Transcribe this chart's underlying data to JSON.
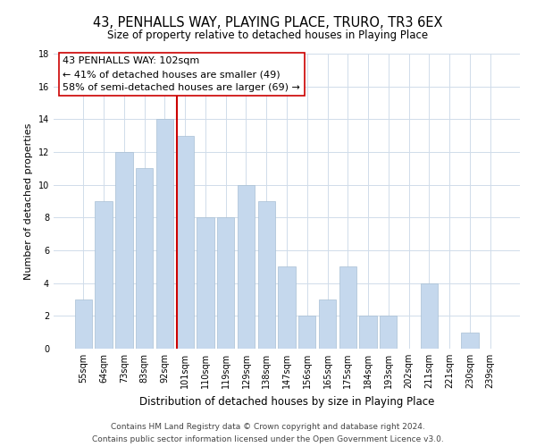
{
  "title": "43, PENHALLS WAY, PLAYING PLACE, TRURO, TR3 6EX",
  "subtitle": "Size of property relative to detached houses in Playing Place",
  "xlabel": "Distribution of detached houses by size in Playing Place",
  "ylabel": "Number of detached properties",
  "bar_labels": [
    "55sqm",
    "64sqm",
    "73sqm",
    "83sqm",
    "92sqm",
    "101sqm",
    "110sqm",
    "119sqm",
    "129sqm",
    "138sqm",
    "147sqm",
    "156sqm",
    "165sqm",
    "175sqm",
    "184sqm",
    "193sqm",
    "202sqm",
    "211sqm",
    "221sqm",
    "230sqm",
    "239sqm"
  ],
  "bar_values": [
    3,
    9,
    12,
    11,
    14,
    13,
    8,
    8,
    10,
    9,
    5,
    2,
    3,
    5,
    2,
    2,
    0,
    4,
    0,
    1,
    0
  ],
  "bar_color": "#c5d8ed",
  "bar_edge_color": "#a8bfd4",
  "highlight_line_color": "#cc0000",
  "highlight_line_index": 5,
  "ylim": [
    0,
    18
  ],
  "yticks": [
    0,
    2,
    4,
    6,
    8,
    10,
    12,
    14,
    16,
    18
  ],
  "annotation_line1": "43 PENHALLS WAY: 102sqm",
  "annotation_line2": "← 41% of detached houses are smaller (49)",
  "annotation_line3": "58% of semi-detached houses are larger (69) →",
  "footer_line1": "Contains HM Land Registry data © Crown copyright and database right 2024.",
  "footer_line2": "Contains public sector information licensed under the Open Government Licence v3.0.",
  "title_fontsize": 10.5,
  "subtitle_fontsize": 8.5,
  "xlabel_fontsize": 8.5,
  "ylabel_fontsize": 8.0,
  "tick_fontsize": 7.0,
  "annotation_fontsize": 8.0,
  "footer_fontsize": 6.5,
  "background_color": "#ffffff",
  "grid_color": "#d0dcea"
}
